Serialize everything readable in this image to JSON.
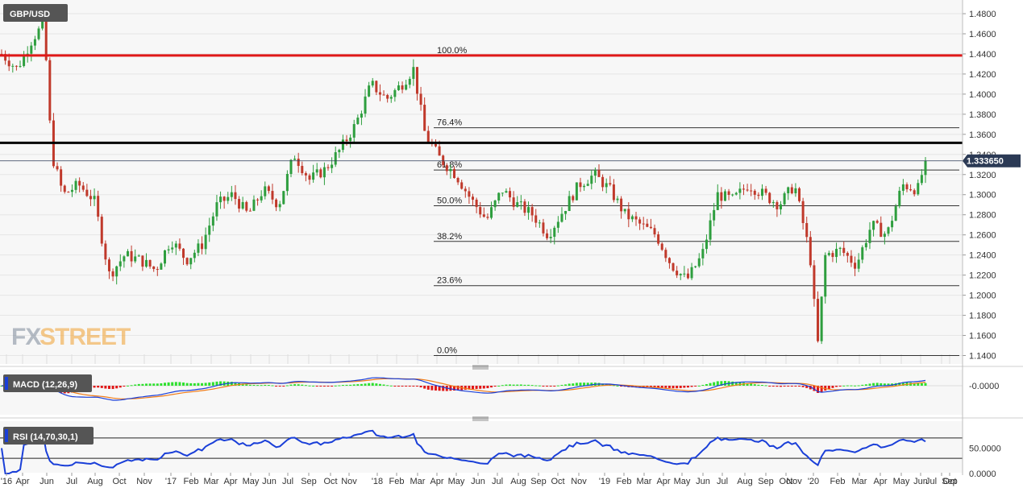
{
  "chart_data": {
    "type": "candlestick",
    "symbol": "GBP/USD",
    "ylim": [
      1.13,
      1.49
    ],
    "y_ticks": [
      "1.4800",
      "1.4600",
      "1.4400",
      "1.4200",
      "1.4000",
      "1.3800",
      "1.3600",
      "1.3400",
      "1.3200",
      "1.3000",
      "1.2800",
      "1.2600",
      "1.2400",
      "1.2200",
      "1.2000",
      "1.1800",
      "1.1600",
      "1.1400"
    ],
    "y_tick_values": [
      1.48,
      1.46,
      1.44,
      1.42,
      1.4,
      1.38,
      1.36,
      1.34,
      1.32,
      1.3,
      1.28,
      1.26,
      1.24,
      1.22,
      1.2,
      1.18,
      1.16,
      1.14
    ],
    "x_ticks": [
      "'16",
      "Apr",
      "Jun",
      "Jul",
      "Aug",
      "Oct",
      "Nov",
      "'17",
      "Feb",
      "Mar",
      "Apr",
      "May",
      "Jun",
      "Jul",
      "Sep",
      "Oct",
      "Nov",
      "'18",
      "Feb",
      "Mar",
      "Apr",
      "May",
      "Jun",
      "Jul",
      "Aug",
      "Sep",
      "Oct",
      "Nov",
      "'19",
      "Feb",
      "Mar",
      "Apr",
      "May",
      "Jun",
      "Jul",
      "Aug",
      "Sep",
      "Oct",
      "Nov",
      "'20",
      "Feb",
      "Mar",
      "Apr",
      "May",
      "Jun",
      "Jul",
      "Sep",
      "Oct"
    ],
    "current_price": "1.333650",
    "current_value": 1.33365,
    "horizontal_lines": [
      {
        "value": 1.4385,
        "color": "#e01818"
      },
      {
        "value": 1.3515,
        "color": "#000000"
      }
    ],
    "fibonacci": {
      "levels": [
        {
          "label": "100.0%",
          "value": 1.4385
        },
        {
          "label": "76.4%",
          "value": 1.3666
        },
        {
          "label": "61.8%",
          "value": 1.3245
        },
        {
          "label": "50.0%",
          "value": 1.289
        },
        {
          "label": "38.2%",
          "value": 1.2535
        },
        {
          "label": "23.6%",
          "value": 1.2095
        },
        {
          "label": "0.0%",
          "value": 1.14
        }
      ]
    },
    "price_path": [
      {
        "t": 0.0,
        "v": 1.44
      },
      {
        "t": 0.02,
        "v": 1.425
      },
      {
        "t": 0.04,
        "v": 1.455
      },
      {
        "t": 0.055,
        "v": 1.47
      },
      {
        "t": 0.065,
        "v": 1.34
      },
      {
        "t": 0.08,
        "v": 1.3
      },
      {
        "t": 0.1,
        "v": 1.31
      },
      {
        "t": 0.12,
        "v": 1.295
      },
      {
        "t": 0.14,
        "v": 1.22
      },
      {
        "t": 0.16,
        "v": 1.24
      },
      {
        "t": 0.18,
        "v": 1.235
      },
      {
        "t": 0.2,
        "v": 1.225
      },
      {
        "t": 0.22,
        "v": 1.255
      },
      {
        "t": 0.24,
        "v": 1.235
      },
      {
        "t": 0.26,
        "v": 1.25
      },
      {
        "t": 0.28,
        "v": 1.29
      },
      {
        "t": 0.3,
        "v": 1.3
      },
      {
        "t": 0.32,
        "v": 1.28
      },
      {
        "t": 0.34,
        "v": 1.305
      },
      {
        "t": 0.36,
        "v": 1.29
      },
      {
        "t": 0.38,
        "v": 1.34
      },
      {
        "t": 0.4,
        "v": 1.315
      },
      {
        "t": 0.42,
        "v": 1.325
      },
      {
        "t": 0.44,
        "v": 1.345
      },
      {
        "t": 0.46,
        "v": 1.37
      },
      {
        "t": 0.48,
        "v": 1.41
      },
      {
        "t": 0.5,
        "v": 1.395
      },
      {
        "t": 0.52,
        "v": 1.41
      },
      {
        "t": 0.535,
        "v": 1.425
      },
      {
        "t": 0.55,
        "v": 1.36
      },
      {
        "t": 0.57,
        "v": 1.335
      },
      {
        "t": 0.59,
        "v": 1.32
      },
      {
        "t": 0.61,
        "v": 1.295
      },
      {
        "t": 0.63,
        "v": 1.275
      },
      {
        "t": 0.65,
        "v": 1.305
      },
      {
        "t": 0.67,
        "v": 1.29
      },
      {
        "t": 0.69,
        "v": 1.28
      },
      {
        "t": 0.71,
        "v": 1.26
      },
      {
        "t": 0.73,
        "v": 1.285
      },
      {
        "t": 0.75,
        "v": 1.31
      },
      {
        "t": 0.77,
        "v": 1.32
      },
      {
        "t": 0.79,
        "v": 1.305
      },
      {
        "t": 0.81,
        "v": 1.28
      },
      {
        "t": 0.83,
        "v": 1.27
      },
      {
        "t": 0.85,
        "v": 1.26
      },
      {
        "t": 0.87,
        "v": 1.23
      },
      {
        "t": 0.89,
        "v": 1.215
      },
      {
        "t": 0.91,
        "v": 1.24
      },
      {
        "t": 0.93,
        "v": 1.3
      },
      {
        "t": 0.95,
        "v": 1.295
      },
      {
        "t": 0.97,
        "v": 1.31
      },
      {
        "t": 0.99,
        "v": 1.3
      },
      {
        "t": 1.01,
        "v": 1.29
      },
      {
        "t": 1.03,
        "v": 1.31
      },
      {
        "t": 1.05,
        "v": 1.24
      },
      {
        "t": 1.06,
        "v": 1.15
      },
      {
        "t": 1.07,
        "v": 1.24
      },
      {
        "t": 1.09,
        "v": 1.245
      },
      {
        "t": 1.11,
        "v": 1.23
      },
      {
        "t": 1.13,
        "v": 1.27
      },
      {
        "t": 1.15,
        "v": 1.26
      },
      {
        "t": 1.17,
        "v": 1.31
      },
      {
        "t": 1.19,
        "v": 1.305
      },
      {
        "t": 1.2,
        "v": 1.3337
      }
    ],
    "indicators": [
      {
        "name": "MACD (12,26,9)",
        "axis_label": "-0.0000"
      },
      {
        "name": "RSI (14,70,30,1)",
        "axis_labels": [
          "50.0000",
          "0.0000"
        ],
        "levels": [
          70,
          30
        ],
        "current": 63
      }
    ],
    "colors": {
      "up": "#2e9e3e",
      "down": "#c0392b",
      "macd_line": "#1a3fd8",
      "signal_line": "#f07d1a",
      "hist_up": "#2ee02e",
      "hist_down": "#e01818",
      "rsi_line": "#1a3fd8"
    }
  },
  "watermark": {
    "part1": "FX",
    "part2": "STREET"
  }
}
